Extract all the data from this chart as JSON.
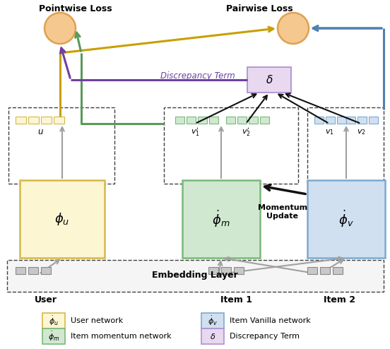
{
  "colors": {
    "yellow_fill": "#fdf6d3",
    "yellow_edge": "#d4b84a",
    "green_fill": "#d0e8d0",
    "green_edge": "#7ab87a",
    "blue_fill": "#d0e0f0",
    "blue_edge": "#7aaad0",
    "purple_fill": "#e8d8f0",
    "purple_edge": "#b090d0",
    "orange_fill": "#f5c890",
    "orange_edge": "#e0a050",
    "gray_dark": "#404040",
    "embed_fill": "#b8b8b8",
    "embed_edge": "#888888",
    "arr_green": "#5a9a5a",
    "arr_yellow": "#c8a000",
    "arr_purple": "#7040a0",
    "arr_blue": "#5080b0",
    "arr_black": "#111111",
    "arr_gray": "#a0a0a0"
  },
  "labels": {
    "pointwise": "Pointwise Loss",
    "pairwise": "Pairwise Loss",
    "embedding": "Embedding Layer",
    "user": "User",
    "item1": "Item 1",
    "item2": "Item 2",
    "discrepancy_term": "Discrepancy Term",
    "momentum_update": "Momentum\nUpdate",
    "u": "u",
    "phi_u": "$\\phi_u$",
    "phi_m": "$\\dot{\\phi}_m$",
    "phi_v": "$\\dot{\\phi}_v$",
    "delta": "$\\delta$",
    "v1p": "$v^{\\prime}_1$",
    "v2p": "$v^{\\prime}_2$",
    "v1": "$v_1$",
    "v2": "$v_2$",
    "leg_phi_u": "$\\dot{\\phi}_u$",
    "leg_phi_m": "$\\dot{\\phi}_m$",
    "leg_phi_v": "$\\dot{\\phi}_v$",
    "leg_delta": "$\\delta$",
    "leg_user": "User network",
    "leg_vanilla": "Item Vanilla network",
    "leg_momentum": "Item momentum network",
    "leg_discrepancy": "Discrepancy Term"
  }
}
